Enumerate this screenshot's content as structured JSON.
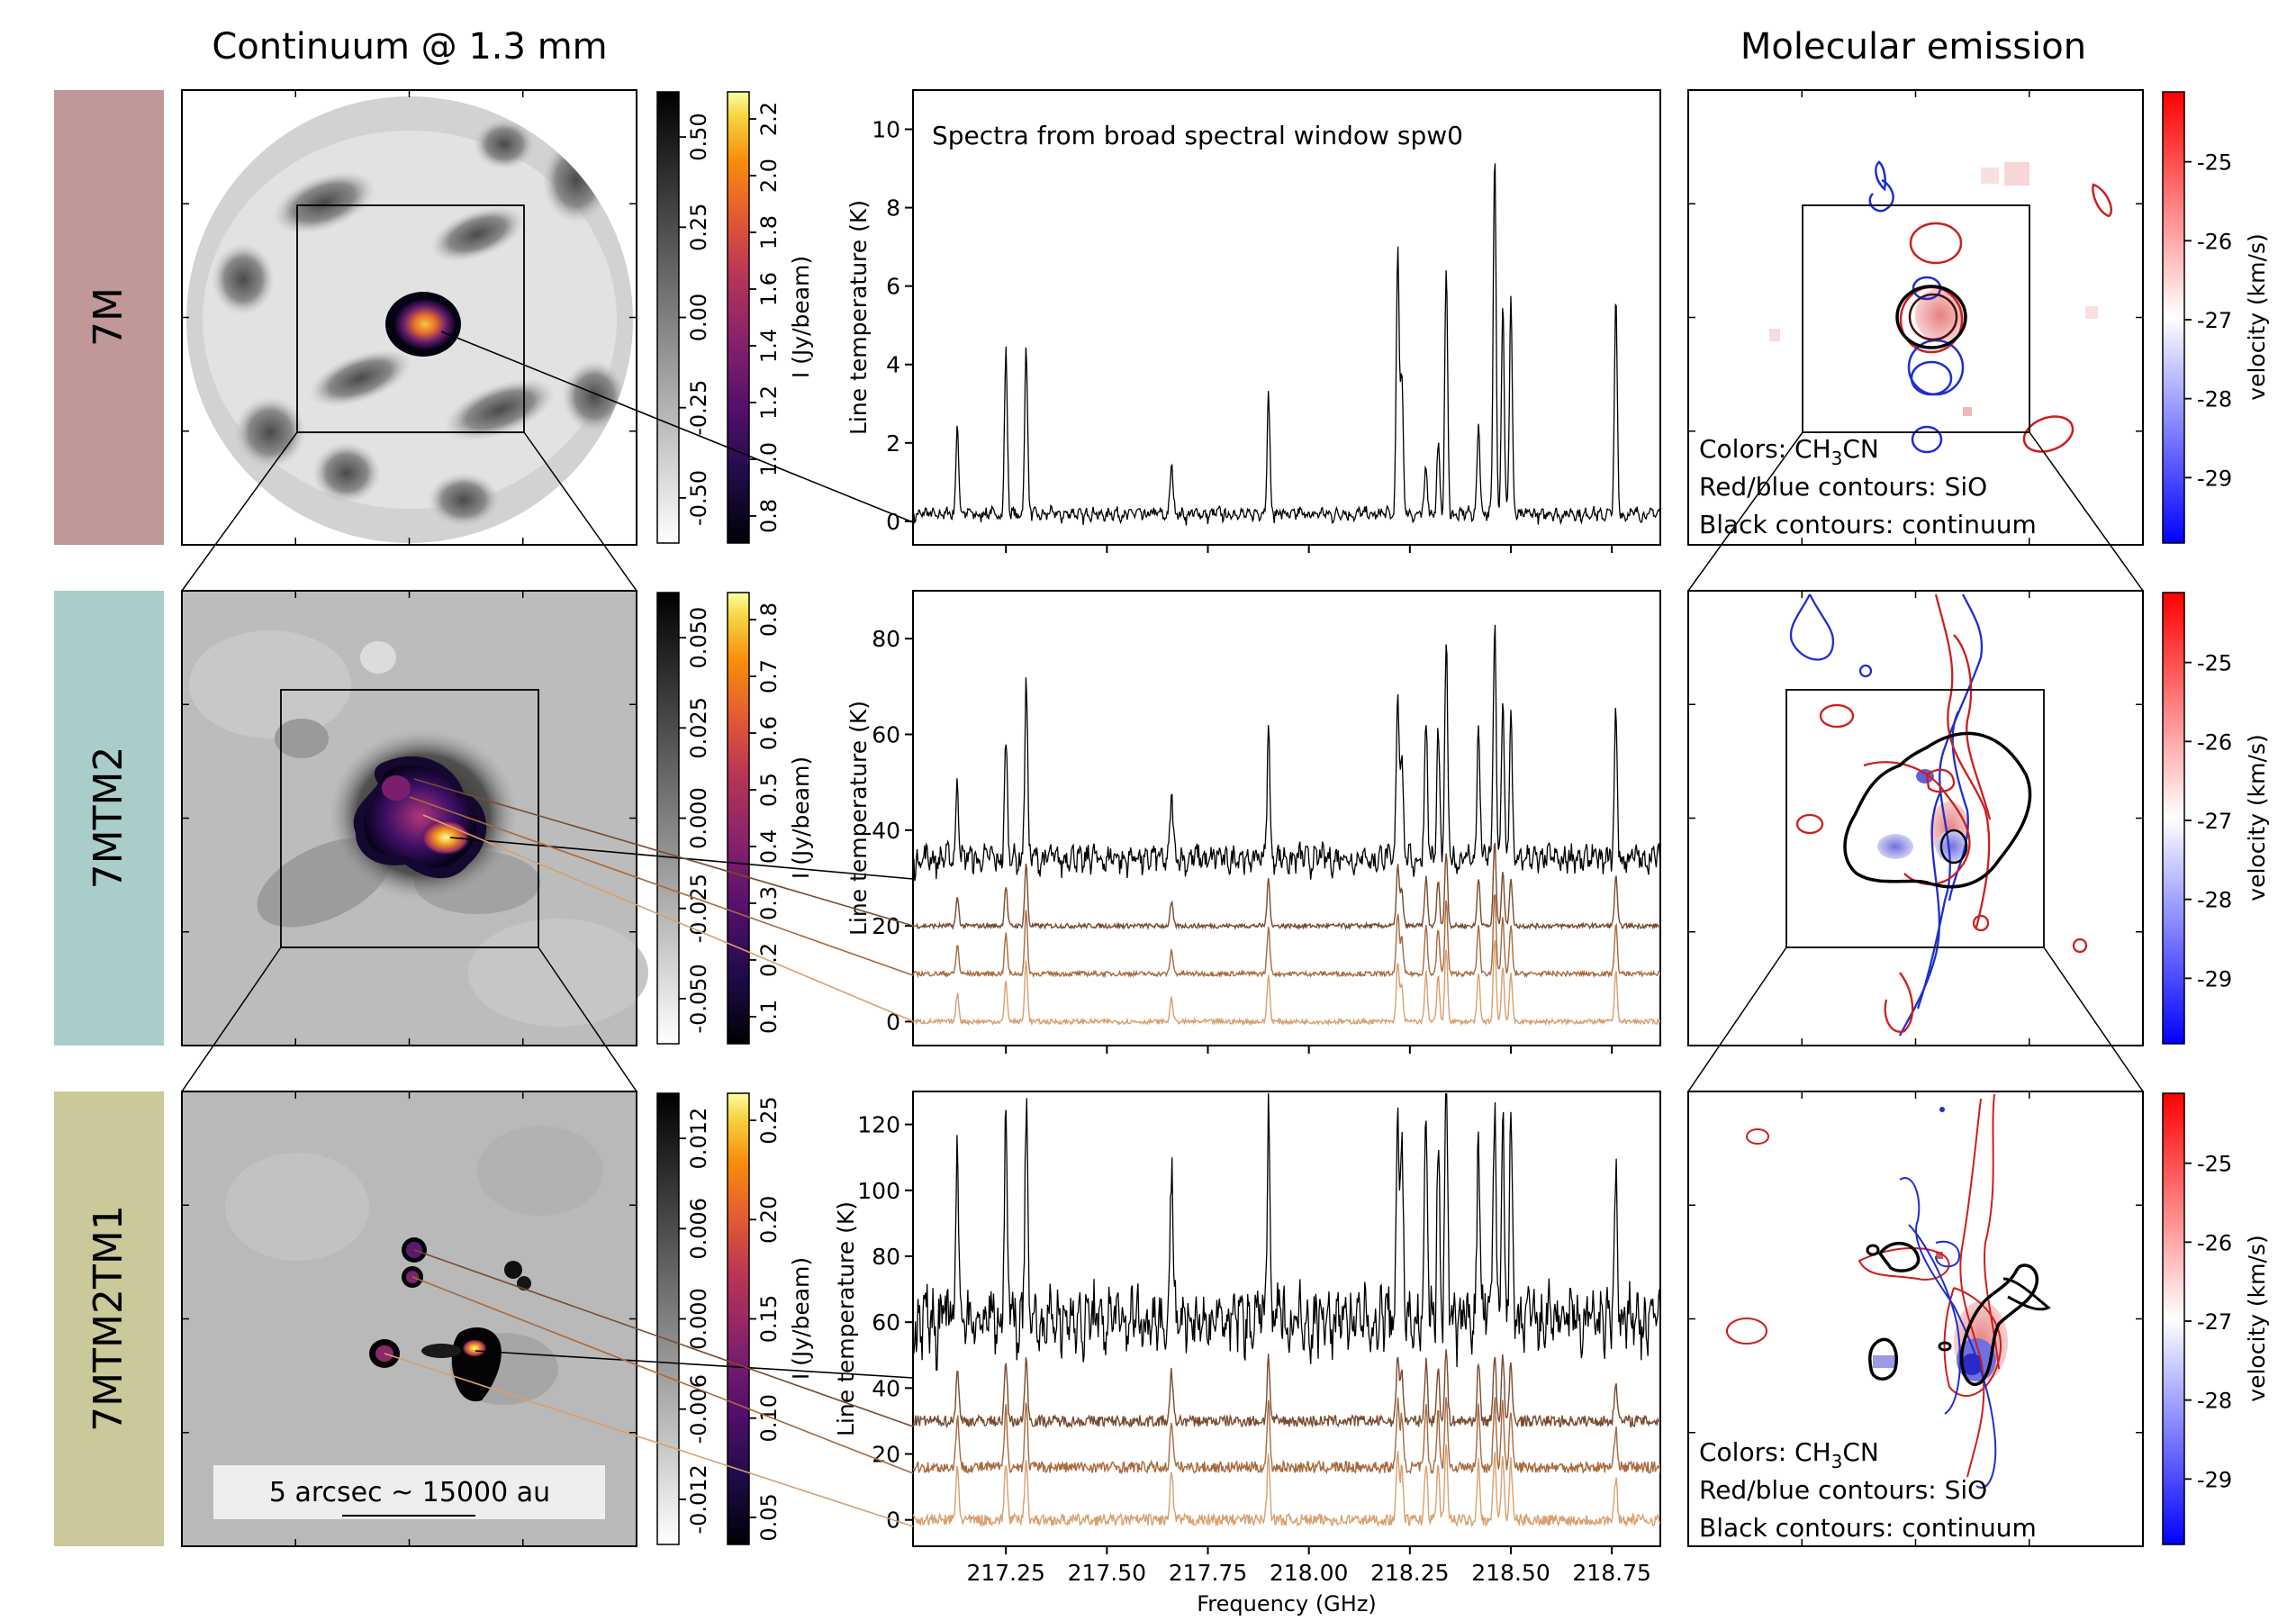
{
  "headings": {
    "continuum": "Continuum @ 1.3 mm",
    "molecular": "Molecular emission"
  },
  "rows": [
    {
      "label": "7M",
      "color": "#c09898"
    },
    {
      "label": "7MTM2",
      "color": "#a9cdcb"
    },
    {
      "label": "7MTM2TM1",
      "color": "#cbc899"
    }
  ],
  "colors": {
    "spec_main": "#000000",
    "spec_a": "#7a4a2e",
    "spec_b": "#a86a3e",
    "spec_c": "#d8a070",
    "red": "#cc1f1f",
    "blue": "#1f2fcc"
  },
  "spectra_annotation": "Spectra from broad spectral window spw0",
  "scalebar_label": "5 arcsec ~ 15000 au",
  "legend": {
    "colors_prefix": "Colors: CH",
    "colors_sub": "3",
    "colors_suffix": "CN",
    "sio": "Red/blue contours: SiO",
    "cont": "Black contours: continuum"
  },
  "chart_data": [
    {
      "type": "line",
      "panel": "spectrum-7M",
      "xlabel": "",
      "ylabel": "Line temperature (K)",
      "xlim": [
        217.02,
        218.87
      ],
      "ylim": [
        -0.6,
        11
      ],
      "yticks": [
        "0",
        "2",
        "4",
        "6",
        "8",
        "10"
      ],
      "baselines": [
        0.0
      ],
      "noise": 0.12,
      "peaks": [
        [
          217.13,
          2.3
        ],
        [
          217.25,
          4.1
        ],
        [
          217.3,
          4.3
        ],
        [
          217.66,
          1.3
        ],
        [
          217.9,
          3.1
        ],
        [
          218.22,
          6.8
        ],
        [
          218.23,
          3.5
        ],
        [
          218.29,
          1.2
        ],
        [
          218.32,
          1.8
        ],
        [
          218.34,
          6.2
        ],
        [
          218.42,
          2.4
        ],
        [
          218.46,
          9.3
        ],
        [
          218.48,
          5.4
        ],
        [
          218.5,
          5.5
        ],
        [
          218.76,
          5.4
        ]
      ]
    },
    {
      "type": "line",
      "panel": "spectrum-7MTM2",
      "xlabel": "",
      "ylabel": "Line temperature (K)",
      "xlim": [
        217.02,
        218.87
      ],
      "ylim": [
        -5,
        90
      ],
      "yticks": [
        "0",
        "20",
        "40",
        "60",
        "80"
      ],
      "baselines": [
        31,
        20,
        10,
        0
      ],
      "noise": 2.0,
      "peaks": [
        [
          217.13,
          48
        ],
        [
          217.25,
          55
        ],
        [
          217.3,
          68
        ],
        [
          217.66,
          45
        ],
        [
          217.9,
          59
        ],
        [
          218.22,
          67
        ],
        [
          218.23,
          52
        ],
        [
          218.29,
          60
        ],
        [
          218.32,
          58
        ],
        [
          218.34,
          75
        ],
        [
          218.42,
          60
        ],
        [
          218.46,
          81
        ],
        [
          218.48,
          64
        ],
        [
          218.5,
          60
        ],
        [
          218.76,
          61
        ]
      ]
    },
    {
      "type": "line",
      "panel": "spectrum-7MTM2TM1",
      "xlabel": "Frequency (GHz)",
      "ylabel": "Line temperature (K)",
      "xlim": [
        217.02,
        218.87
      ],
      "ylim": [
        -8,
        130
      ],
      "xticks": [
        "217.25",
        "217.50",
        "217.75",
        "218.00",
        "218.25",
        "218.50",
        "218.75"
      ],
      "xtickvals": [
        217.25,
        217.5,
        217.75,
        218.0,
        218.25,
        218.5,
        218.75
      ],
      "yticks": [
        "0",
        "20",
        "40",
        "60",
        "80",
        "100",
        "120"
      ],
      "baselines": [
        50,
        30,
        16,
        0
      ],
      "noise": 7.0,
      "peaks": [
        [
          217.13,
          105
        ],
        [
          217.25,
          110
        ],
        [
          217.3,
          115
        ],
        [
          217.66,
          100
        ],
        [
          217.9,
          115
        ],
        [
          218.22,
          118
        ],
        [
          218.23,
          100
        ],
        [
          218.29,
          110
        ],
        [
          218.32,
          105
        ],
        [
          218.34,
          122
        ],
        [
          218.42,
          110
        ],
        [
          218.46,
          120
        ],
        [
          218.48,
          115
        ],
        [
          218.5,
          108
        ],
        [
          218.76,
          92
        ]
      ]
    },
    {
      "type": "heatmap",
      "panel": "continuum-colorbars",
      "gray_ticks": [
        [
          "0.50",
          "0.25",
          "0.00",
          "-0.25",
          "-0.50"
        ],
        [
          "0.050",
          "0.025",
          "0.000",
          "-0.025",
          "-0.050"
        ],
        [
          "0.012",
          "0.006",
          "0.000",
          "-0.006",
          "-0.012"
        ]
      ],
      "color_ticks": [
        [
          "2.2",
          "2.0",
          "1.8",
          "1.6",
          "1.4",
          "1.2",
          "1.0",
          "0.8"
        ],
        [
          "0.8",
          "0.7",
          "0.6",
          "0.5",
          "0.4",
          "0.3",
          "0.2",
          "0.1"
        ],
        [
          "0.25",
          "0.20",
          "0.15",
          "0.10",
          "0.05"
        ]
      ],
      "color_label": "I (Jy/beam)"
    },
    {
      "type": "heatmap",
      "panel": "velocity-colorbars",
      "label": "velocity (km/s)",
      "ticks": [
        "-25",
        "-26",
        "-27",
        "-28",
        "-29"
      ]
    }
  ]
}
